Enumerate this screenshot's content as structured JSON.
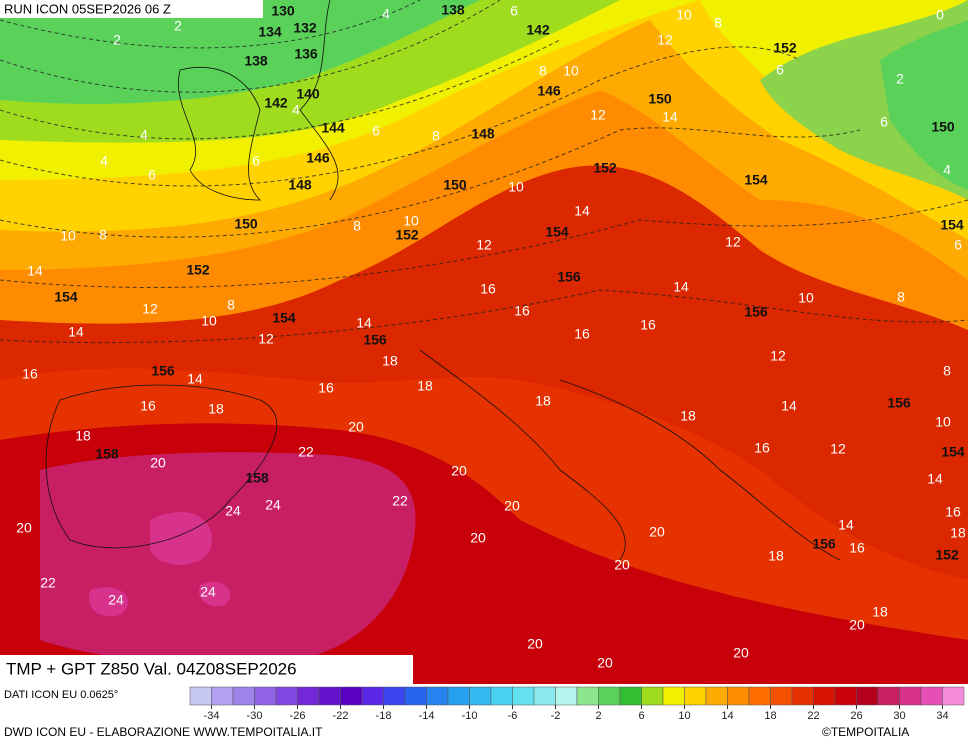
{
  "header": {
    "run": "RUN ICON 05SEP2026 06 Z"
  },
  "map": {
    "geopotential_labels": [
      130,
      138,
      134,
      132,
      142,
      138,
      136,
      152,
      140,
      142,
      146,
      150,
      144,
      148,
      150,
      146,
      152,
      148,
      150,
      154,
      150,
      152,
      154,
      154,
      152,
      156,
      154,
      154,
      156,
      156,
      156,
      156,
      158,
      154,
      158,
      156,
      152
    ],
    "temperature_labels": [
      4,
      6,
      10,
      8,
      0,
      2,
      2,
      12,
      8,
      10,
      6,
      2,
      4,
      6,
      8,
      12,
      14,
      6,
      4,
      4,
      6,
      6,
      4,
      10,
      10,
      8,
      14,
      10,
      8,
      12,
      12,
      6,
      14,
      8,
      12,
      10,
      16,
      14,
      10,
      8,
      12,
      14,
      14,
      16,
      16,
      16,
      12,
      16,
      14,
      18,
      18,
      16,
      8,
      16,
      18,
      18,
      14,
      18,
      10,
      20,
      18,
      16,
      12,
      22,
      20,
      14,
      20,
      22,
      24,
      24,
      20,
      16,
      20,
      20,
      14,
      18,
      20,
      16,
      18,
      20,
      22,
      24,
      24,
      18,
      20,
      20,
      20,
      20
    ]
  },
  "footer": {
    "title": "TMP + GPT Z850 Val. 04Z08SEP2026",
    "source": "DATI ICON EU 0.0625°",
    "credit": "DWD ICON EU - ELABORAZIONE WWW.TEMPOITALIA.IT",
    "copyright": "©TEMPOITALIA"
  },
  "colorbar": {
    "ticks": [
      -34,
      -30,
      -26,
      -22,
      -18,
      -14,
      -10,
      -6,
      -2,
      2,
      6,
      10,
      14,
      18,
      22,
      26,
      30,
      34
    ],
    "colors": [
      "#c8c8f5",
      "#b4a0f0",
      "#a082eb",
      "#9164e6",
      "#8246e1",
      "#7328d7",
      "#6414cd",
      "#5a00c3",
      "#5a28e6",
      "#3c46f0",
      "#2864f0",
      "#2882f0",
      "#28a0f0",
      "#32b9f0",
      "#46d2f0",
      "#64e1f0",
      "#8cebf0",
      "#b4f5f0",
      "#8ce68c",
      "#5ad25a",
      "#32be32",
      "#a0dc1e",
      "#f0f000",
      "#ffd200",
      "#ffaa00",
      "#ff8c00",
      "#ff6e00",
      "#f55000",
      "#e63200",
      "#d71400",
      "#c8000a",
      "#b4001e",
      "#c81e64",
      "#d7328c",
      "#e650b4",
      "#f58cdc"
    ]
  }
}
